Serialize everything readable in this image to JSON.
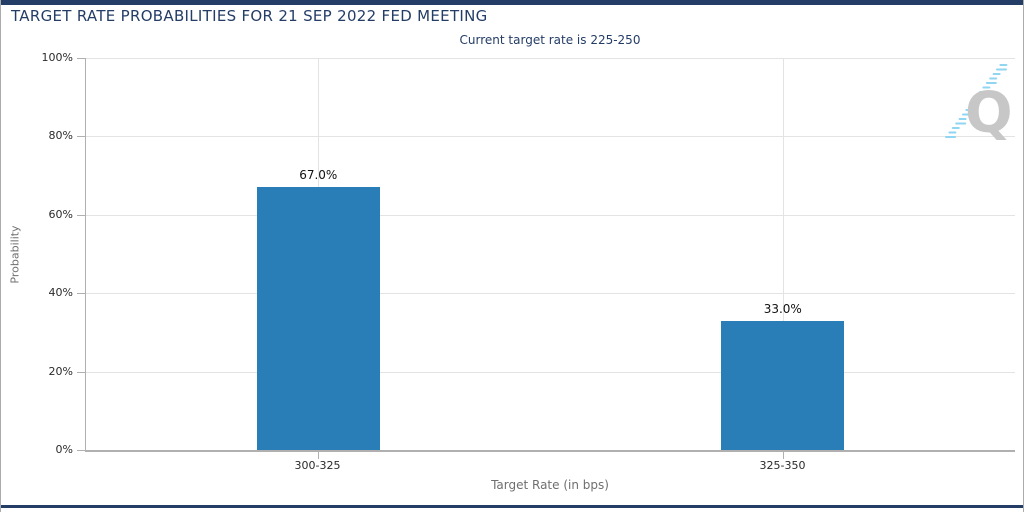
{
  "header": {
    "title": "TARGET RATE PROBABILITIES FOR 21 SEP 2022 FED MEETING",
    "subtitle": "Current target rate is 225-250"
  },
  "watermark": {
    "letter": "Q"
  },
  "colors": {
    "navy": "#243D66",
    "bar": "#2A7EB8",
    "grid": "#E3E3E3",
    "axis": "#B0B0B0",
    "tick_label": "#2B2B2B",
    "axis_title": "#6F6F6F",
    "logo_gray": "#C7C7C7",
    "logo_blue": "#90D5F2",
    "frame_border": "#ABABAB"
  },
  "chart_data": {
    "type": "bar",
    "title": "TARGET RATE PROBABILITIES FOR 21 SEP 2022 FED MEETING",
    "subtitle": "Current target rate is 225-250",
    "categories": [
      "300-325",
      "325-350"
    ],
    "values": [
      67.0,
      33.0
    ],
    "value_labels": [
      "67.0%",
      "33.0%"
    ],
    "xlabel": "Target Rate (in bps)",
    "ylabel": "Probability",
    "ylim": [
      0,
      100
    ],
    "yticks": [
      0,
      20,
      40,
      60,
      80,
      100
    ],
    "ytick_labels": [
      "0%",
      "20%",
      "40%",
      "60%",
      "80%",
      "100%"
    ],
    "grid": "horizontal gridlines at y ticks, vertical gridlines at category centers",
    "legend": "none",
    "bar_color": "#2A7EB8"
  }
}
